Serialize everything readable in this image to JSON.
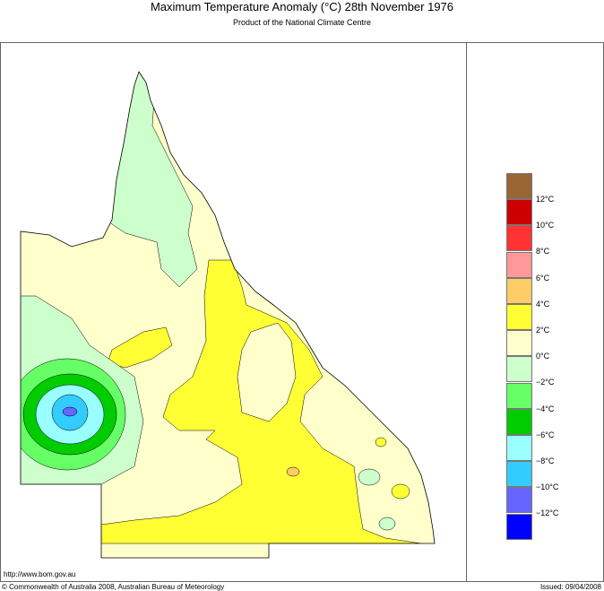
{
  "header": {
    "title": "Maximum Temperature Anomaly (°C)  28th November 1976",
    "subtitle": "Product of the National Climate Centre"
  },
  "footer": {
    "url": "http://www.bom.gov.au",
    "copyright": "© Commonwealth of Australia 2008, Australian Bureau of Meteorology",
    "issued": "Issued: 09/04/2008"
  },
  "legend": {
    "colors": [
      "#996633",
      "#cc0000",
      "#ff3333",
      "#ff9999",
      "#ffcc66",
      "#ffff33",
      "#ffffcc",
      "#ccffcc",
      "#66ff66",
      "#00cc00",
      "#99ffff",
      "#33ccff",
      "#6666ff",
      "#0000ff"
    ],
    "labels": [
      "12°C",
      "10°C",
      "8°C",
      "6°C",
      "4°C",
      "2°C",
      "0°C",
      "−2°C",
      "−4°C",
      "−6°C",
      "−8°C",
      "−10°C",
      "−12°C"
    ]
  }
}
